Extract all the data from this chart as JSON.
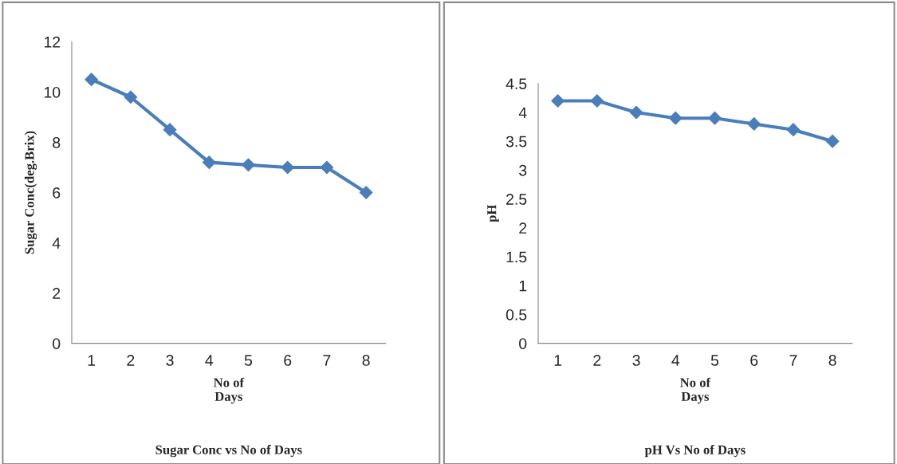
{
  "chart_data": [
    {
      "type": "line",
      "title": "Sugar Conc vs No of Days",
      "xlabel": "No of\nDays",
      "ylabel": "Sugar Conc(deg.Brix)",
      "categories": [
        "1",
        "2",
        "3",
        "4",
        "5",
        "6",
        "7",
        "8"
      ],
      "series": [
        {
          "color": "#4a7ebb",
          "values": [
            10.5,
            9.8,
            8.5,
            7.2,
            7.1,
            7.0,
            7.0,
            6.0
          ]
        }
      ],
      "ylim": [
        0,
        12
      ],
      "yticks": [
        0,
        2,
        4,
        6,
        8,
        10,
        12
      ],
      "marker": "diamond",
      "line_style": "solid",
      "grid": false,
      "legend": false
    },
    {
      "type": "line",
      "title": "pH Vs No of Days",
      "xlabel": "No of\nDays",
      "ylabel": "pH",
      "categories": [
        "1",
        "2",
        "3",
        "4",
        "5",
        "6",
        "7",
        "8"
      ],
      "series": [
        {
          "color": "#4a7ebb",
          "values": [
            4.2,
            4.2,
            4.0,
            3.9,
            3.9,
            3.8,
            3.7,
            3.5
          ]
        }
      ],
      "ylim": [
        0,
        4.5
      ],
      "yticks": [
        0,
        0.5,
        1,
        1.5,
        2,
        2.5,
        3,
        3.5,
        4,
        4.5
      ],
      "marker": "diamond",
      "line_style": "solid",
      "grid": false,
      "legend": false
    }
  ]
}
